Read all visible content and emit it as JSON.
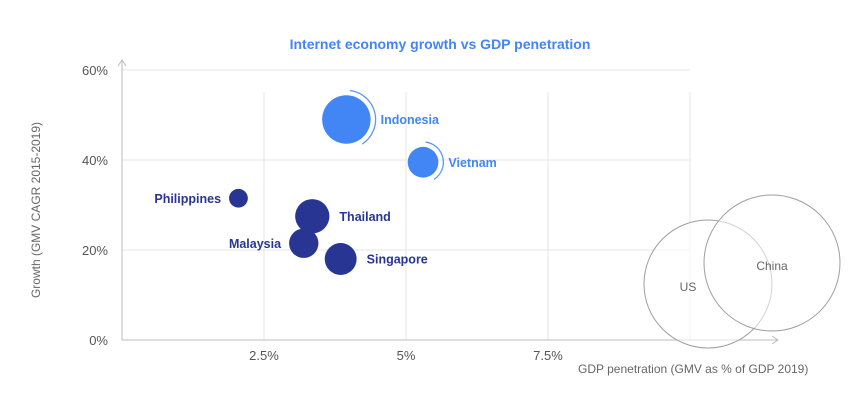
{
  "chart_data": {
    "type": "scatter",
    "title": "Internet economy growth vs GDP penetration",
    "xlabel": "GDP penetration (GMV as % of GDP 2019)",
    "ylabel": "Growth (GMV CAGR 2015-2019)",
    "xlim": [
      0,
      10
    ],
    "ylim": [
      0,
      60
    ],
    "x_ticks": [
      {
        "value": 2.5,
        "label": "2.5%"
      },
      {
        "value": 5,
        "label": "5%"
      },
      {
        "value": 7.5,
        "label": "7.5%"
      }
    ],
    "y_ticks": [
      {
        "value": 0,
        "label": "0%"
      },
      {
        "value": 20,
        "label": "20%"
      },
      {
        "value": 40,
        "label": "40%"
      },
      {
        "value": 60,
        "label": "60%"
      }
    ],
    "grid": true,
    "colors": {
      "title": "#4285f4",
      "light_bubble": "#4285f4",
      "dark_bubble": "#283593",
      "gridline": "#e6e6e6",
      "axis": "#bbbbbb",
      "reference_circle": "#9e9e9e"
    },
    "points": [
      {
        "name": "Indonesia",
        "x": 3.95,
        "y": 49,
        "size": 3.0,
        "color": "light",
        "ring": true
      },
      {
        "name": "Vietnam",
        "x": 5.3,
        "y": 39.5,
        "size": 1.2,
        "color": "light",
        "ring": true
      },
      {
        "name": "Philippines",
        "x": 2.05,
        "y": 31.5,
        "size": 0.45,
        "color": "dark",
        "ring": false
      },
      {
        "name": "Thailand",
        "x": 3.35,
        "y": 27.5,
        "size": 1.5,
        "color": "dark",
        "ring": false
      },
      {
        "name": "Malaysia",
        "x": 3.2,
        "y": 21.5,
        "size": 1.1,
        "color": "dark",
        "ring": false
      },
      {
        "name": "Singapore",
        "x": 3.85,
        "y": 18,
        "size": 1.3,
        "color": "dark",
        "ring": false
      }
    ],
    "reference_circles": [
      {
        "name": "US"
      },
      {
        "name": "China"
      }
    ]
  }
}
